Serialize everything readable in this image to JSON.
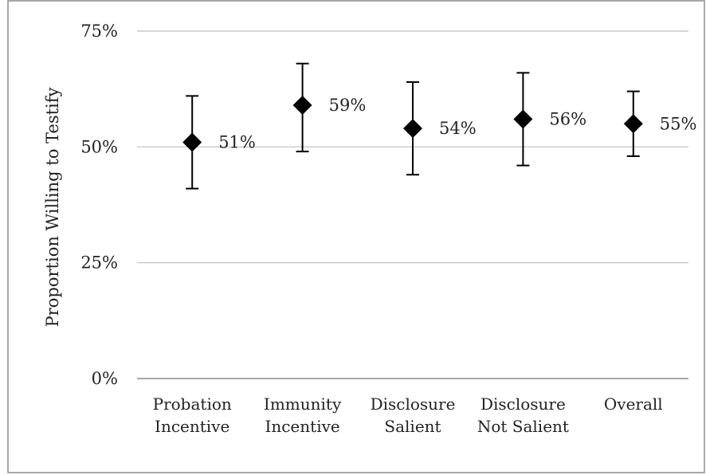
{
  "chart_data": {
    "type": "scatter",
    "categories": [
      [
        "Probation",
        "Incentive"
      ],
      [
        "Immunity",
        "Incentive"
      ],
      [
        "Disclosure",
        "Salient"
      ],
      [
        "Disclosure",
        "Not Salient"
      ],
      [
        "Overall"
      ]
    ],
    "values": [
      0.51,
      0.59,
      0.54,
      0.56,
      0.55
    ],
    "error_low": [
      0.41,
      0.49,
      0.44,
      0.46,
      0.48
    ],
    "error_high": [
      0.61,
      0.68,
      0.64,
      0.66,
      0.62
    ],
    "data_labels": [
      "51%",
      "59%",
      "54%",
      "56%",
      "55%"
    ],
    "ylabel": "Proportion Willing to Testify",
    "xlabel": "",
    "title": "",
    "ylim": [
      0,
      0.75
    ],
    "yticks": [
      0,
      0.25,
      0.5,
      0.75
    ],
    "ytick_labels": [
      "0%",
      "25%",
      "50%",
      "75%"
    ],
    "marker": "diamond",
    "marker_color": "#000000",
    "grid": "horizontal",
    "grid_color": "#bfbfbf"
  }
}
